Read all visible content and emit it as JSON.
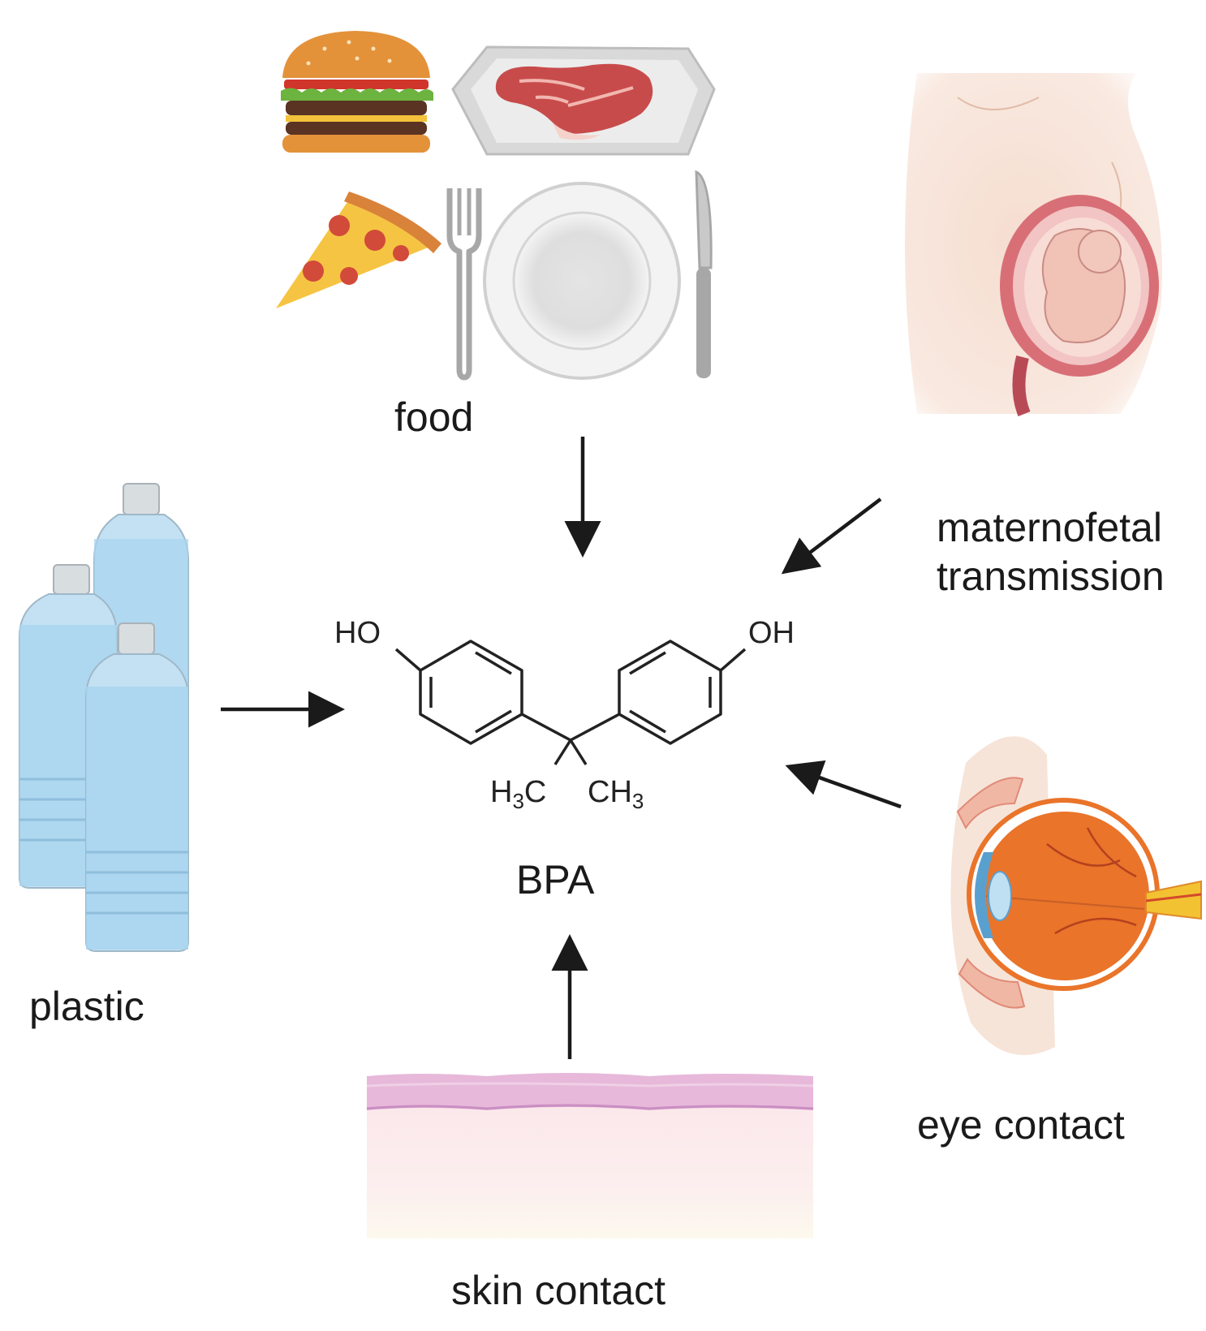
{
  "labels": {
    "food": "food",
    "maternofetal_line1": "maternofetal",
    "maternofetal_line2": "transmission",
    "plastic": "plastic",
    "eye_contact": "eye contact",
    "skin_contact": "skin contact",
    "center": "BPA"
  },
  "molecule": {
    "hydroxyl_left": "HO",
    "hydroxyl_right": "OH",
    "methyl_left_h": "H",
    "methyl_left_sub": "3",
    "methyl_left_c": "C",
    "methyl_right_ch": "CH",
    "methyl_right_sub": "3"
  },
  "colors": {
    "arrow": "#1a1a1a",
    "text": "#1a1a1a",
    "water": "#a9d4ef",
    "skin_top": "#e7b8da",
    "skin_body": "#fbe9ea",
    "iris": "#e9742a"
  }
}
